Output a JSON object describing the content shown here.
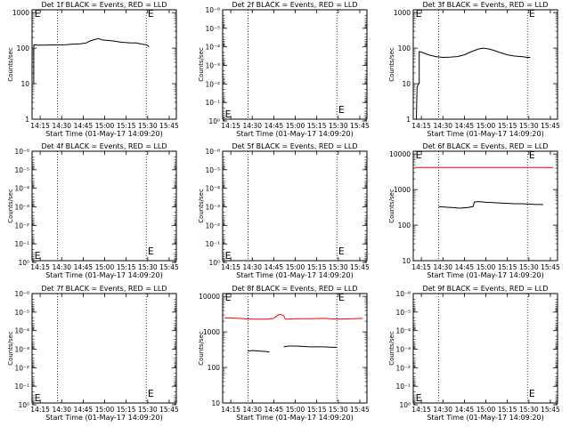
{
  "colors": {
    "background": "#ffffff",
    "events": "#000000",
    "lld": "#ff0000"
  },
  "chart_data": [
    {
      "type": "line",
      "title": "Det 1f BLACK = Events, RED = LLD",
      "xlabel": "Start Time (01-May-17 14:09:20)",
      "ylabel": "Counts/sec",
      "x_ticks": [
        "14:15",
        "14:30",
        "14:45",
        "15:00",
        "15:15",
        "15:30",
        "15:45"
      ],
      "x_tick_values": [
        15,
        30,
        45,
        60,
        75,
        90,
        105
      ],
      "xlim": [
        9.33,
        110
      ],
      "y_scale": "log",
      "y_ticks": [
        "1",
        "10",
        "100",
        "1000"
      ],
      "ylim": [
        1,
        1200
      ],
      "dotted_vlines": [
        27,
        89
      ],
      "markers": [
        {
          "label": "E",
          "x": 11
        },
        {
          "label": "E",
          "x": 90
        }
      ],
      "series": [
        {
          "color": "black",
          "x": [
            10.5,
            10.5,
            11,
            13,
            18,
            23,
            28,
            33,
            38,
            43,
            47,
            50,
            53,
            56,
            58,
            62,
            66,
            70,
            74,
            78,
            82,
            86,
            89,
            90,
            91
          ],
          "y": [
            10,
            120,
            125,
            122,
            121,
            123,
            123,
            125,
            130,
            133,
            140,
            160,
            175,
            185,
            170,
            165,
            160,
            150,
            145,
            140,
            140,
            130,
            125,
            118,
            110
          ]
        }
      ]
    },
    {
      "type": "line",
      "title": "Det 2f BLACK = Events, RED = LLD",
      "xlabel": "Start Time (01-May-17 14:09:20)",
      "ylabel": "Counts/sec",
      "x_ticks": [
        "14:15",
        "14:30",
        "14:45",
        "15:00",
        "15:15",
        "15:30",
        "15:45"
      ],
      "x_tick_values": [
        15,
        30,
        45,
        60,
        75,
        90,
        105
      ],
      "xlim": [
        9.33,
        110
      ],
      "y_scale": "log",
      "y_ticks": [
        "10⁰",
        "10⁻¹",
        "10⁻²",
        "10⁻³",
        "10⁻⁴",
        "10⁻⁵",
        "10⁻⁶"
      ],
      "ylim": [
        0.8,
        1e-06
      ],
      "dotted_vlines": [
        27,
        89
      ],
      "markers": [
        {
          "label": "E",
          "x": 11
        },
        {
          "label": "E",
          "x": 90
        }
      ],
      "series": []
    },
    {
      "type": "line",
      "title": "Det 3f BLACK = Events, RED = LLD",
      "xlabel": "Start Time (01-May-17 14:09:20)",
      "ylabel": "Counts/sec",
      "x_ticks": [
        "14:15",
        "14:30",
        "14:45",
        "15:00",
        "15:15",
        "15:30",
        "15:45"
      ],
      "x_tick_values": [
        15,
        30,
        45,
        60,
        75,
        90,
        105
      ],
      "xlim": [
        9.33,
        110
      ],
      "y_scale": "log",
      "y_ticks": [
        "1",
        "10",
        "100",
        "1000"
      ],
      "ylim": [
        1,
        1200
      ],
      "dotted_vlines": [
        27,
        89
      ],
      "markers": [
        {
          "label": "E",
          "x": 11
        },
        {
          "label": "E",
          "x": 90
        }
      ],
      "series": [
        {
          "color": "black",
          "x": [
            11.5,
            12,
            13,
            13.5,
            13.5,
            16,
            20,
            25,
            30,
            35,
            40,
            45,
            50,
            55,
            58,
            62,
            66,
            70,
            75,
            80,
            85,
            89,
            90,
            91
          ],
          "y": [
            1,
            8,
            10,
            10,
            80,
            75,
            65,
            58,
            55,
            56,
            58,
            65,
            80,
            95,
            100,
            95,
            85,
            75,
            65,
            60,
            58,
            55,
            55,
            55
          ]
        }
      ]
    },
    {
      "type": "line",
      "title": "Det 4f BLACK = Events, RED = LLD",
      "xlabel": "Start Time (01-May-17 14:09:20)",
      "ylabel": "Counts/sec",
      "x_ticks": [
        "14:15",
        "14:30",
        "14:45",
        "15:00",
        "15:15",
        "15:30",
        "15:45"
      ],
      "x_tick_values": [
        15,
        30,
        45,
        60,
        75,
        90,
        105
      ],
      "xlim": [
        9.33,
        110
      ],
      "y_scale": "log",
      "y_ticks": [
        "10⁰",
        "10⁻¹",
        "10⁻²",
        "10⁻³",
        "10⁻⁴",
        "10⁻⁵",
        "10⁻⁶"
      ],
      "ylim": [
        0.8,
        1e-06
      ],
      "dotted_vlines": [
        27,
        89
      ],
      "markers": [
        {
          "label": "E",
          "x": 11
        },
        {
          "label": "E",
          "x": 90
        }
      ],
      "series": []
    },
    {
      "type": "line",
      "title": "Det 5f BLACK = Events, RED = LLD",
      "xlabel": "Start Time (01-May-17 14:09:20)",
      "ylabel": "Counts/sec",
      "x_ticks": [
        "14:15",
        "14:30",
        "14:45",
        "15:00",
        "15:15",
        "15:30",
        "15:45"
      ],
      "x_tick_values": [
        15,
        30,
        45,
        60,
        75,
        90,
        105
      ],
      "xlim": [
        9.33,
        110
      ],
      "y_scale": "log",
      "y_ticks": [
        "10⁰",
        "10⁻¹",
        "10⁻²",
        "10⁻³",
        "10⁻⁴",
        "10⁻⁵",
        "10⁻⁶"
      ],
      "ylim": [
        0.8,
        1e-06
      ],
      "dotted_vlines": [
        27,
        89
      ],
      "markers": [
        {
          "label": "E",
          "x": 11
        },
        {
          "label": "E",
          "x": 90
        }
      ],
      "series": []
    },
    {
      "type": "line",
      "title": "Det 6f BLACK = Events, RED = LLD",
      "xlabel": "Start Time (01-May-17 14:09:20)",
      "ylabel": "Counts/sec",
      "x_ticks": [
        "14:15",
        "14:30",
        "14:45",
        "15:00",
        "15:15",
        "15:30",
        "15:45"
      ],
      "x_tick_values": [
        15,
        30,
        45,
        60,
        75,
        90,
        105
      ],
      "xlim": [
        9.33,
        110
      ],
      "y_scale": "log",
      "y_ticks": [
        "10",
        "100",
        "1000",
        "10000"
      ],
      "ylim": [
        10,
        12000
      ],
      "dotted_vlines": [
        27,
        89
      ],
      "markers": [
        {
          "label": "E",
          "x": 11
        },
        {
          "label": "E",
          "x": 90
        }
      ],
      "series": [
        {
          "color": "red",
          "x": [
            10.5,
            20,
            40,
            60,
            80,
            100,
            107
          ],
          "y": [
            4200,
            4200,
            4200,
            4200,
            4200,
            4200,
            4200
          ]
        },
        {
          "color": "black",
          "x": [
            27,
            32,
            37,
            42,
            47,
            51,
            52,
            55,
            60,
            65,
            70,
            75,
            80,
            85,
            90,
            95,
            100
          ],
          "y": [
            330,
            320,
            310,
            300,
            310,
            330,
            450,
            460,
            440,
            430,
            420,
            410,
            400,
            400,
            390,
            380,
            380
          ]
        }
      ]
    },
    {
      "type": "line",
      "title": "Det 7f BLACK = Events, RED = LLD",
      "xlabel": "Start Time (01-May-17 14:09:20)",
      "ylabel": "Counts/sec",
      "x_ticks": [
        "14:15",
        "14:30",
        "14:45",
        "15:00",
        "15:15",
        "15:30",
        "15:45"
      ],
      "x_tick_values": [
        15,
        30,
        45,
        60,
        75,
        90,
        105
      ],
      "xlim": [
        9.33,
        110
      ],
      "y_scale": "log",
      "y_ticks": [
        "10⁰",
        "10⁻¹",
        "10⁻²",
        "10⁻³",
        "10⁻⁴",
        "10⁻⁵",
        "10⁻⁶"
      ],
      "ylim": [
        0.8,
        1e-06
      ],
      "dotted_vlines": [
        27,
        89
      ],
      "markers": [
        {
          "label": "E",
          "x": 11
        },
        {
          "label": "E",
          "x": 90
        }
      ],
      "series": []
    },
    {
      "type": "line",
      "title": "Det 8f BLACK = Events, RED = LLD",
      "xlabel": "Start Time (01-May-17 14:09:20)",
      "ylabel": "Counts/sec",
      "x_ticks": [
        "14:15",
        "14:30",
        "14:45",
        "15:00",
        "15:15",
        "15:30",
        "15:45"
      ],
      "x_tick_values": [
        15,
        30,
        45,
        60,
        75,
        90,
        105
      ],
      "xlim": [
        9.33,
        110
      ],
      "y_scale": "log",
      "y_ticks": [
        "10",
        "100",
        "1000",
        "10000"
      ],
      "ylim": [
        10,
        12000
      ],
      "dotted_vlines": [
        27,
        89
      ],
      "markers": [
        {
          "label": "E",
          "x": 11
        },
        {
          "label": "E",
          "x": 90
        }
      ],
      "series": [
        {
          "color": "red",
          "x": [
            10.5,
            20,
            30,
            40,
            45,
            47,
            49,
            51,
            52,
            53,
            55,
            60,
            70,
            80,
            90,
            100,
            107
          ],
          "y": [
            2500,
            2400,
            2300,
            2300,
            2400,
            2800,
            3100,
            3000,
            2800,
            2300,
            2300,
            2350,
            2350,
            2400,
            2300,
            2350,
            2400
          ]
        },
        {
          "color": "black",
          "x": [
            27,
            30,
            35,
            40,
            42,
            42,
            52,
            52,
            55,
            60,
            65,
            70,
            75,
            80,
            85,
            89
          ],
          "y": [
            290,
            300,
            290,
            280,
            270,
            null,
            null,
            380,
            400,
            400,
            390,
            380,
            380,
            380,
            370,
            370
          ]
        }
      ]
    },
    {
      "type": "line",
      "title": "Det 9f BLACK = Events, RED = LLD",
      "xlabel": "Start Time (01-May-17 14:09:20)",
      "ylabel": "Counts/sec",
      "x_ticks": [
        "14:15",
        "14:30",
        "14:45",
        "15:00",
        "15:15",
        "15:30",
        "15:45"
      ],
      "x_tick_values": [
        15,
        30,
        45,
        60,
        75,
        90,
        105
      ],
      "xlim": [
        9.33,
        110
      ],
      "y_scale": "log",
      "y_ticks": [
        "10⁰",
        "10⁻¹",
        "10⁻²",
        "10⁻³",
        "10⁻⁴",
        "10⁻⁵",
        "10⁻⁶"
      ],
      "ylim": [
        0.8,
        1e-06
      ],
      "dotted_vlines": [
        27,
        89
      ],
      "markers": [
        {
          "label": "E",
          "x": 11
        },
        {
          "label": "E",
          "x": 90
        }
      ],
      "series": []
    }
  ]
}
